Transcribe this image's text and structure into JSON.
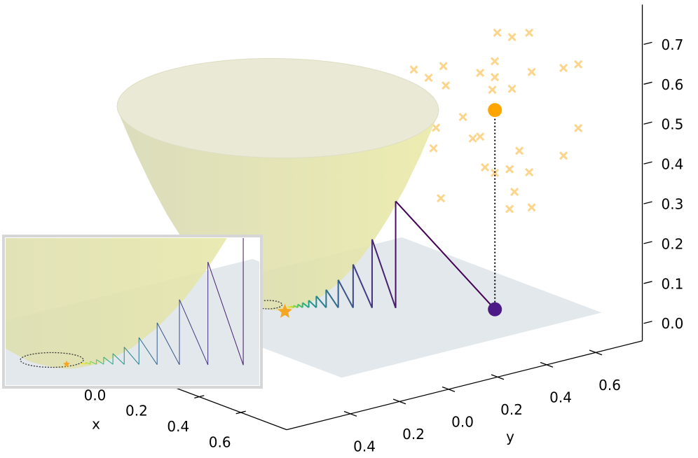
{
  "chart_data": {
    "type": "surface3d",
    "xlabel": "x",
    "ylabel": "y",
    "xlim": [
      -0.5,
      0.82
    ],
    "ylim": [
      -0.66,
      0.79
    ],
    "zlim": [
      -0.044,
      0.8
    ],
    "xticks": [
      {
        "value": 0,
        "label": "0.0"
      },
      0.2,
      0.4,
      0.6
    ],
    "yticks": [
      {
        "value": -0.4,
        "label": "0.4"
      },
      {
        "value": -0.2,
        "label": "0.2"
      },
      {
        "value": 0,
        "label": "0.0"
      },
      0.2,
      0.4,
      0.6
    ],
    "zticks": [
      {
        "value": 0,
        "label": "0.0"
      },
      0.1,
      0.2,
      0.3,
      0.4,
      0.5,
      0.6,
      0.7
    ],
    "start": {
      "x": 0.43,
      "y": 0.52,
      "z": 0,
      "color": "#4b1a87"
    },
    "target": {
      "x": 0.43,
      "y": 0.52,
      "z": 0.5,
      "color": "#ffa500"
    },
    "minimum": {
      "x": 0,
      "y": 0,
      "z": 0,
      "color": "#f5a623"
    },
    "path": {
      "colormap": "viridis",
      "x": [
        0.23,
        0.184,
        0.147,
        0.118,
        0.094,
        0.075,
        0.06,
        0.048,
        0.039,
        0.031,
        0.025,
        0.02
      ],
      "y": [
        0.285,
        0.228,
        0.182,
        0.146,
        0.117,
        0.093,
        0.075,
        0.06,
        0.048,
        0.038,
        0.031,
        0.024
      ],
      "z": [
        0.268,
        0.172,
        0.109,
        0.07,
        0.045,
        0.029,
        0.018,
        0.012,
        0.008,
        0.005,
        0.003,
        0.002
      ]
    },
    "scatter": {
      "color": "#fcd58c",
      "x": [
        0.3,
        0.3,
        0.3,
        0.3,
        0.3,
        0.3,
        0.3,
        0.3,
        0.3,
        0.3,
        0.3,
        0.3,
        0.3,
        0.3,
        0.3,
        0.3,
        0.3,
        0.3,
        0.3,
        0.3,
        0.3,
        0.3,
        0.3,
        0.3,
        0.3,
        0.3,
        0.3,
        0.3,
        0.3,
        0.3,
        0.3,
        0.3
      ],
      "y": [
        0.64,
        0.7,
        0.77,
        0.3,
        0.36,
        0.42,
        0.43,
        0.57,
        0.63,
        0.63,
        0.7,
        0.78,
        0.91,
        0.97,
        0.62,
        0.38,
        0.5,
        0.39,
        0.54,
        0.57,
        0.38,
        0.73,
        0.91,
        0.97,
        0.59,
        0.63,
        0.69,
        0.77,
        0.71,
        0.41,
        0.69,
        0.78
      ],
      "z": [
        0.65,
        0.63,
        0.63,
        0.61,
        0.58,
        0.6,
        0.55,
        0.56,
        0.58,
        0.54,
        0.5,
        0.53,
        0.52,
        0.52,
        0.51,
        0.5,
        0.46,
        0.45,
        0.4,
        0.4,
        0.4,
        0.34,
        0.3,
        0.36,
        0.32,
        0.3,
        0.3,
        0.28,
        0.24,
        0.27,
        0.2,
        0.19
      ]
    }
  }
}
